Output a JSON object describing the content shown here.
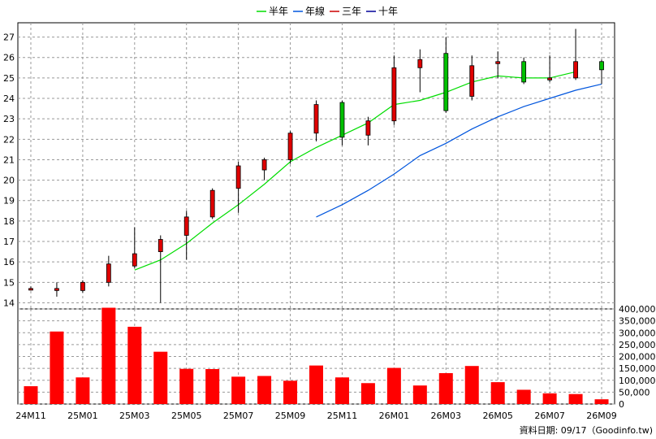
{
  "chart_data": [
    {
      "type": "candlestick",
      "x_labels": [
        "24M11",
        "25M01",
        "25M03",
        "25M05",
        "25M07",
        "25M09",
        "25M11",
        "26M01",
        "26M03",
        "26M05",
        "26M07",
        "26M09"
      ],
      "ylim": [
        13.7,
        27.7
      ],
      "y_ticks": [
        14,
        15,
        16,
        17,
        18,
        19,
        20,
        21,
        22,
        23,
        24,
        25,
        26,
        27
      ],
      "grid": true,
      "legend_position": "top-center",
      "candles": [
        {
          "month": "24M11",
          "open": 14.7,
          "close": 14.7,
          "high": 14.8,
          "low": 14.6
        },
        {
          "month": "24M12",
          "open": 14.6,
          "close": 14.7,
          "high": 15.0,
          "low": 14.3
        },
        {
          "month": "25M01",
          "open": 14.6,
          "close": 15.0,
          "high": 15.1,
          "low": 14.5
        },
        {
          "month": "25M02",
          "open": 15.0,
          "close": 15.9,
          "high": 16.3,
          "low": 14.8
        },
        {
          "month": "25M03",
          "open": 15.8,
          "close": 16.4,
          "high": 17.7,
          "low": 15.7
        },
        {
          "month": "25M04",
          "open": 16.5,
          "close": 17.1,
          "high": 17.3,
          "low": 14.0
        },
        {
          "month": "25M05",
          "open": 17.3,
          "close": 18.2,
          "high": 18.5,
          "low": 16.1
        },
        {
          "month": "25M06",
          "open": 18.2,
          "close": 19.5,
          "high": 19.6,
          "low": 18.1
        },
        {
          "month": "25M07",
          "open": 19.6,
          "close": 20.7,
          "high": 20.9,
          "low": 18.4
        },
        {
          "month": "25M08",
          "open": 20.5,
          "close": 21.0,
          "high": 21.1,
          "low": 20.0
        },
        {
          "month": "25M09",
          "open": 21.0,
          "close": 22.3,
          "high": 22.4,
          "low": 20.8
        },
        {
          "month": "25M10",
          "open": 22.3,
          "close": 23.7,
          "high": 23.9,
          "low": 21.9
        },
        {
          "month": "25M11",
          "open": 23.8,
          "close": 22.1,
          "high": 23.9,
          "low": 21.7
        },
        {
          "month": "25M12",
          "open": 22.2,
          "close": 22.9,
          "high": 23.1,
          "low": 21.7
        },
        {
          "month": "26M01",
          "open": 22.9,
          "close": 25.5,
          "high": 26.1,
          "low": 22.7
        },
        {
          "month": "26M02",
          "open": 25.5,
          "close": 25.9,
          "high": 26.4,
          "low": 24.3
        },
        {
          "month": "26M03",
          "open": 26.2,
          "close": 23.4,
          "high": 27.0,
          "low": 23.3
        },
        {
          "month": "26M04",
          "open": 24.1,
          "close": 25.6,
          "high": 26.1,
          "low": 23.9
        },
        {
          "month": "26M05",
          "open": 25.7,
          "close": 25.8,
          "high": 26.3,
          "low": 25.0
        },
        {
          "month": "26M06",
          "open": 25.8,
          "close": 24.8,
          "high": 26.0,
          "low": 24.7
        },
        {
          "month": "26M07",
          "open": 24.9,
          "close": 25.0,
          "high": 26.1,
          "low": 24.8
        },
        {
          "month": "26M08",
          "open": 25.0,
          "close": 25.8,
          "high": 27.4,
          "low": 24.9
        },
        {
          "month": "26M09",
          "open": 25.8,
          "close": 25.4,
          "high": 25.9,
          "low": 24.7
        }
      ],
      "series": [
        {
          "name": "半年",
          "color": "#00dd00",
          "start_index": 4,
          "values": [
            15.6,
            16.1,
            16.9,
            17.9,
            18.8,
            19.8,
            20.9,
            21.6,
            22.2,
            22.8,
            23.7,
            23.9,
            24.3,
            24.8,
            25.1,
            25.0,
            25.0,
            25.3
          ]
        },
        {
          "name": "年線",
          "color": "#0055dd",
          "start_index": 11,
          "values": [
            18.2,
            18.8,
            19.5,
            20.3,
            21.2,
            21.8,
            22.5,
            23.1,
            23.6,
            24.0,
            24.4,
            24.7
          ]
        },
        {
          "name": "三年",
          "color": "#cc0000",
          "start_index": 0,
          "values": []
        },
        {
          "name": "十年",
          "color": "#000099",
          "start_index": 0,
          "values": []
        }
      ],
      "colors": {
        "up": "#e00000",
        "down": "#00c000",
        "grid": "#999999"
      }
    },
    {
      "type": "bar",
      "ylim": [
        0,
        400000
      ],
      "y_ticks": [
        "0",
        "50,000",
        "100,000",
        "150,000",
        "200,000",
        "250,000",
        "300,000",
        "350,000",
        "400,000"
      ],
      "values": [
        75000,
        305000,
        112000,
        405000,
        325000,
        220000,
        148000,
        147000,
        115000,
        118000,
        98000,
        162000,
        112000,
        88000,
        152000,
        78000,
        130000,
        160000,
        92000,
        60000,
        45000,
        42000,
        20000
      ],
      "color": "#ff0000"
    }
  ],
  "credit": "資料日期: 09/17（Goodinfo.tw)"
}
